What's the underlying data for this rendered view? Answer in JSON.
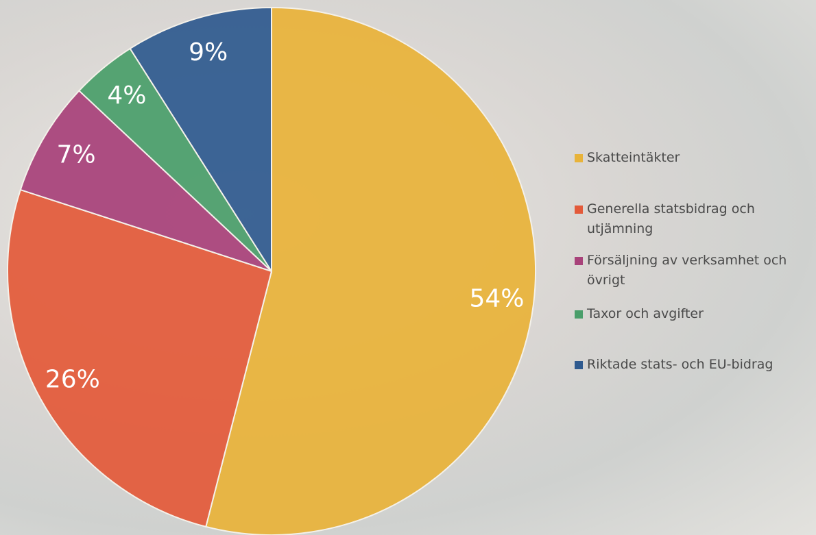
{
  "chart_data": {
    "type": "pie",
    "categories": [
      "Skatteintäkter",
      "Generella statsbidrag och utjämning",
      "Försäljning av verksamhet och övrigt",
      "Taxor och avgifter",
      "Riktade stats- och EU-bidrag"
    ],
    "values": [
      54,
      26,
      7,
      4,
      9
    ],
    "value_labels": [
      "54%",
      "26%",
      "7%",
      "4%",
      "9%"
    ],
    "colors": [
      "#e8b33a",
      "#e35a3a",
      "#a8427a",
      "#4a9e6a",
      "#2f5a8f"
    ],
    "legend": "right"
  }
}
